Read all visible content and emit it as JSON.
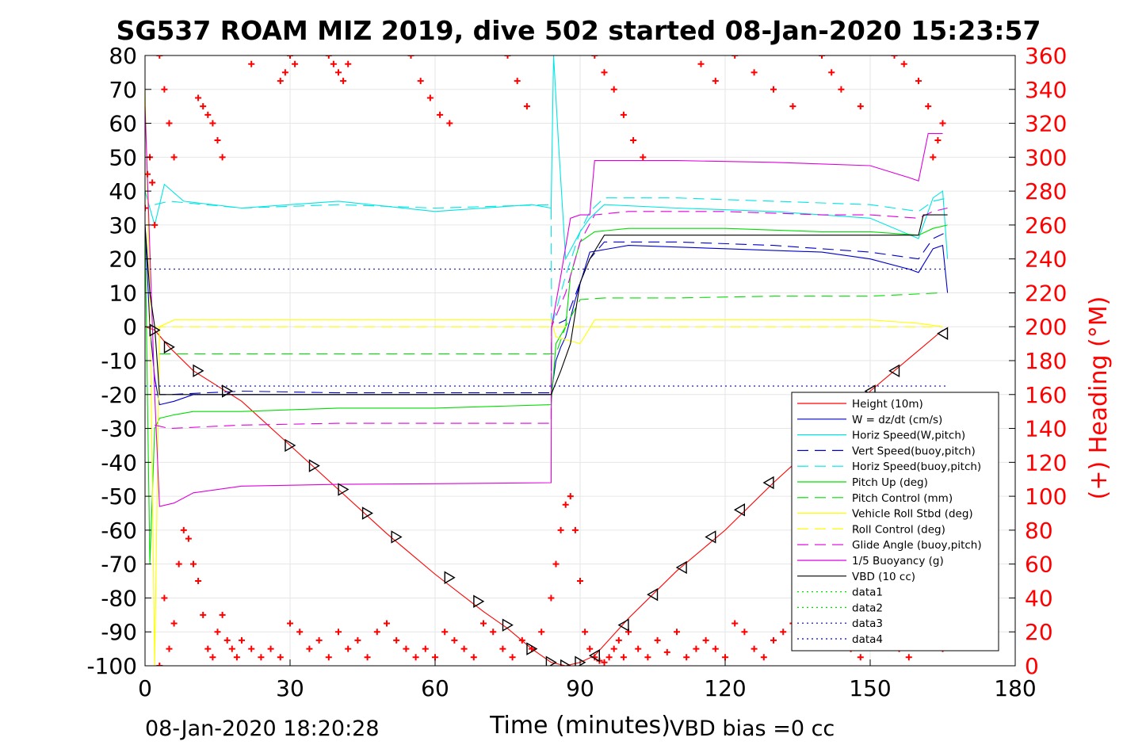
{
  "chart_data": {
    "type": "line",
    "title": "SG537 ROAM MIZ 2019, dive 502 started 08-Jan-2020 15:23:57",
    "xlabel": "Time (minutes)",
    "ylabel_right": "(+) Heading (°M)",
    "footer_left": "08-Jan-2020 18:20:28",
    "footer_right": "VBD bias =0 cc",
    "xlim": [
      0,
      180
    ],
    "ylim": [
      -100,
      80
    ],
    "ylim_right": [
      0,
      360
    ],
    "xticks": [
      "0",
      "30",
      "60",
      "90",
      "120",
      "150",
      "180"
    ],
    "yticks": [
      "80",
      "70",
      "60",
      "50",
      "40",
      "30",
      "20",
      "10",
      "0",
      "-10",
      "-20",
      "-30",
      "-40",
      "-50",
      "-60",
      "-70",
      "-80",
      "-90",
      "-100"
    ],
    "yticks_right": [
      "360",
      "340",
      "320",
      "300",
      "280",
      "260",
      "240",
      "220",
      "200",
      "180",
      "160",
      "140",
      "120",
      "100",
      "80",
      "60",
      "40",
      "20",
      "0"
    ],
    "grid": true,
    "legend_position": "lower-right",
    "colors": {
      "right_axis": "#ff0000"
    },
    "series": [
      {
        "name": "Height (10m)",
        "color": "#ff0000",
        "style": "solid",
        "x": [
          0,
          2,
          5,
          10,
          20,
          30,
          40,
          50,
          60,
          70,
          75,
          80,
          84,
          87,
          90,
          93,
          100,
          110,
          120,
          130,
          140,
          150,
          155,
          160,
          165
        ],
        "y": [
          0,
          -1,
          -6,
          -13,
          -22,
          -35,
          -48,
          -61,
          -73,
          -84,
          -89,
          -95,
          -99,
          -100,
          -99,
          -97,
          -86,
          -72,
          -60,
          -46,
          -33,
          -19,
          -13,
          -7,
          -1
        ]
      },
      {
        "name": "W = dz/dt (cm/s)",
        "color": "#0000cc",
        "style": "solid",
        "x": [
          0,
          1,
          2,
          3,
          6,
          10,
          20,
          40,
          60,
          80,
          84,
          85,
          86,
          87,
          89,
          92,
          100,
          120,
          140,
          150,
          158,
          160,
          163,
          165,
          166
        ],
        "y": [
          30,
          0,
          -15,
          -23,
          -22,
          -20,
          -20,
          -20,
          -20,
          -20,
          -20,
          -10,
          -6,
          -3,
          8,
          22,
          24,
          23,
          22,
          20,
          17,
          16,
          23,
          24,
          10
        ]
      },
      {
        "name": "Horiz Speed(W,pitch)",
        "color": "#00e5e5",
        "style": "solid",
        "x": [
          0,
          2,
          4,
          8,
          20,
          40,
          60,
          80,
          84,
          84.5,
          85.5,
          87,
          90,
          92,
          95,
          110,
          130,
          150,
          160,
          163,
          165,
          166
        ],
        "y": [
          40,
          30,
          42,
          37,
          35,
          37,
          34,
          36,
          35,
          80,
          55,
          20,
          28,
          32,
          36,
          35,
          34,
          32,
          26,
          38,
          40,
          20
        ]
      },
      {
        "name": "Vert Speed(buoy,pitch)",
        "color": "#0000cc",
        "style": "dash",
        "x": [
          2,
          5,
          20,
          40,
          60,
          84,
          84.1,
          87,
          90,
          92,
          95,
          110,
          130,
          150,
          160,
          163,
          166
        ],
        "y": [
          -20,
          -20,
          -19,
          -19.5,
          -19.5,
          -19.5,
          0,
          2,
          13,
          20,
          25,
          25,
          24,
          22,
          20,
          26,
          28
        ]
      },
      {
        "name": "Horiz Speed(buoy,pitch)",
        "color": "#00e5e5",
        "style": "dash",
        "x": [
          2,
          5,
          20,
          40,
          60,
          84,
          84.1,
          87,
          90,
          92,
          95,
          110,
          130,
          150,
          160,
          163,
          166
        ],
        "y": [
          36,
          37,
          35,
          36,
          35,
          36,
          0,
          15,
          28,
          34,
          38,
          38,
          37,
          36,
          34,
          37,
          38
        ]
      },
      {
        "name": "Pitch Up (deg)",
        "color": "#00dd00",
        "style": "solid",
        "x": [
          0,
          1,
          2,
          3,
          6,
          10,
          20,
          40,
          60,
          84,
          85,
          87,
          88,
          90,
          93,
          100,
          120,
          140,
          150,
          160,
          163,
          166
        ],
        "y": [
          30,
          -70,
          -30,
          -27,
          -26,
          -25,
          -25,
          -24,
          -24,
          -23,
          -5,
          0,
          15,
          25,
          28,
          29,
          29,
          28,
          28,
          27,
          29,
          30
        ]
      },
      {
        "name": "Pitch Control (mm)",
        "color": "#00dd00",
        "style": "dash",
        "x": [
          3,
          20,
          40,
          60,
          84,
          85,
          87,
          90,
          95,
          110,
          130,
          150,
          165
        ],
        "y": [
          -8,
          -8,
          -8,
          -8,
          -8,
          -8,
          0,
          8,
          8.5,
          8.5,
          9,
          9,
          10
        ]
      },
      {
        "name": "Vehicle Roll Stbd (deg)",
        "color": "#ffff00",
        "style": "solid",
        "x": [
          0,
          1,
          2,
          3,
          6,
          10,
          30,
          60,
          84,
          85,
          90,
          93,
          95,
          120,
          150,
          160,
          165
        ],
        "y": [
          70,
          10,
          -100,
          0,
          2,
          2,
          2,
          2,
          2,
          -3,
          -5,
          2,
          2,
          2,
          2,
          1,
          0
        ]
      },
      {
        "name": "Roll Control (deg)",
        "color": "#ffff00",
        "style": "dash",
        "x": [
          2,
          30,
          84,
          93,
          120,
          165
        ],
        "y": [
          0,
          0,
          0,
          0,
          0,
          0
        ]
      },
      {
        "name": "Glide Angle (buoy,pitch)",
        "color": "#dd00dd",
        "style": "dash",
        "x": [
          2,
          5,
          20,
          40,
          60,
          84,
          84.1,
          87,
          90,
          93,
          100,
          120,
          140,
          150,
          160,
          163,
          166
        ],
        "y": [
          -29,
          -30,
          -29,
          -28.5,
          -28.5,
          -28.5,
          0,
          10,
          25,
          33,
          34,
          34,
          33,
          33,
          32,
          34,
          35
        ]
      },
      {
        "name": "1/5 Buoyancy (g)",
        "color": "#dd00dd",
        "style": "solid",
        "x": [
          0,
          2,
          3,
          6,
          10,
          20,
          40,
          60,
          84,
          84.1,
          86,
          88,
          90,
          92,
          93,
          110,
          130,
          150,
          158,
          160,
          162,
          165
        ],
        "y": [
          65,
          -20,
          -53,
          -52,
          -49,
          -47,
          -46.5,
          -46.3,
          -46,
          0,
          15,
          32,
          33,
          33,
          49,
          49,
          48.5,
          47.5,
          44,
          43,
          57,
          57
        ]
      },
      {
        "name": "VBD (10 cc)",
        "color": "#000000",
        "style": "solid",
        "x": [
          0,
          1,
          2,
          3,
          6,
          10,
          30,
          60,
          84,
          86,
          88,
          90,
          92,
          95,
          110,
          130,
          150,
          160,
          161,
          165,
          166
        ],
        "y": [
          30,
          10,
          0,
          -20,
          -20,
          -20,
          -20,
          -20,
          -20,
          -13,
          -5,
          13,
          20,
          27,
          27,
          27,
          27,
          27,
          33,
          33,
          33
        ]
      },
      {
        "name": "data1",
        "color": "#00dd00",
        "style": "dot",
        "x": [],
        "y": []
      },
      {
        "name": "data2",
        "color": "#00dd00",
        "style": "dot",
        "x": [],
        "y": []
      },
      {
        "name": "data3",
        "color": "#0000cc",
        "style": "dot",
        "x": [
          0,
          166
        ],
        "y": [
          17,
          17
        ]
      },
      {
        "name": "data4",
        "color": "#0000cc",
        "style": "dot",
        "x": [
          0,
          166
        ],
        "y": [
          -17.5,
          -17.5
        ]
      }
    ],
    "heading_series": {
      "axis": "right",
      "marker": "+",
      "color": "#ff0000",
      "x": [
        0,
        0.5,
        1,
        1.5,
        2,
        3,
        4,
        5,
        6,
        7,
        8,
        9,
        10,
        11,
        12,
        13,
        14,
        15,
        16,
        17,
        18,
        19,
        20,
        22,
        24,
        26,
        28,
        30,
        32,
        34,
        36,
        38,
        40,
        42,
        44,
        46,
        48,
        50,
        52,
        54,
        56,
        58,
        60,
        62,
        64,
        66,
        68,
        70,
        72,
        74,
        76,
        78,
        80,
        82,
        84,
        85,
        86,
        87,
        88,
        89,
        90,
        91,
        92,
        93,
        94,
        95,
        96,
        97,
        98,
        99,
        100,
        102,
        104,
        106,
        108,
        110,
        112,
        114,
        116,
        118,
        120,
        122,
        124,
        126,
        128,
        130,
        132,
        134,
        136,
        138,
        140,
        142,
        144,
        146,
        148,
        150,
        152,
        154,
        156,
        158,
        160,
        162,
        164,
        165
      ],
      "y": [
        270,
        290,
        300,
        285,
        260,
        0,
        40,
        10,
        25,
        60,
        80,
        75,
        60,
        50,
        30,
        10,
        5,
        20,
        30,
        15,
        10,
        5,
        15,
        10,
        5,
        10,
        5,
        25,
        20,
        10,
        15,
        5,
        20,
        10,
        15,
        5,
        20,
        25,
        15,
        10,
        5,
        10,
        5,
        20,
        15,
        10,
        5,
        25,
        20,
        10,
        5,
        15,
        10,
        20,
        40,
        60,
        80,
        95,
        100,
        80,
        50,
        20,
        10,
        5,
        3,
        2,
        5,
        10,
        15,
        5,
        20,
        10,
        5,
        15,
        8,
        20,
        5,
        10,
        15,
        10,
        5,
        25,
        20,
        10,
        5,
        15,
        20,
        25,
        30,
        35,
        25,
        20,
        15,
        10,
        5,
        20,
        25,
        15,
        10,
        5,
        15,
        20,
        25,
        10
      ]
    },
    "heading_upper": {
      "axis": "right",
      "marker": "+",
      "color": "#ff0000",
      "x": [
        3,
        4,
        5,
        6,
        11,
        12,
        13,
        14,
        15,
        16,
        22,
        28,
        29,
        30,
        31,
        38,
        39,
        40,
        41,
        42,
        55,
        57,
        59,
        61,
        63,
        75,
        77,
        79,
        93,
        95,
        97,
        99,
        101,
        103,
        115,
        118,
        122,
        126,
        130,
        134,
        140,
        142,
        144,
        148,
        155,
        157,
        160,
        162,
        163,
        164,
        165
      ],
      "y": [
        360,
        340,
        320,
        300,
        335,
        330,
        325,
        320,
        310,
        300,
        355,
        345,
        350,
        360,
        355,
        360,
        355,
        350,
        345,
        355,
        360,
        345,
        335,
        325,
        320,
        360,
        345,
        330,
        360,
        350,
        340,
        325,
        310,
        300,
        355,
        345,
        360,
        350,
        340,
        330,
        360,
        350,
        340,
        330,
        360,
        355,
        345,
        330,
        300,
        310,
        320
      ]
    },
    "waypoints": {
      "marker": "triangle",
      "color": "#000000",
      "x": [
        2,
        5,
        11,
        17,
        30,
        35,
        41,
        46,
        52,
        63,
        69,
        75,
        80,
        84,
        87,
        90,
        93,
        99,
        105,
        111,
        117,
        123,
        129,
        150,
        155,
        165
      ],
      "y": [
        -1,
        -6,
        -13,
        -19,
        -35,
        -41,
        -48,
        -55,
        -62,
        -74,
        -81,
        -88,
        -95,
        -99,
        -100,
        -99,
        -97,
        -88,
        -79,
        -71,
        -62,
        -54,
        -46,
        -19,
        -13,
        -2
      ]
    }
  }
}
